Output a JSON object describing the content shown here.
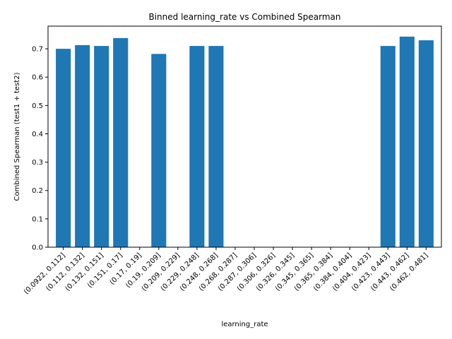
{
  "chart_data": {
    "type": "bar",
    "title": "Binned learning_rate vs Combined Spearman",
    "xlabel": "learning_rate",
    "ylabel": "Combined Spearman (test1 + test2)",
    "ylim": [
      0,
      0.78
    ],
    "yticks": [
      "0.0",
      "0.1",
      "0.2",
      "0.3",
      "0.4",
      "0.5",
      "0.6",
      "0.7"
    ],
    "yticks_values": [
      0,
      0.1,
      0.2,
      0.3,
      0.4,
      0.5,
      0.6,
      0.7
    ],
    "grid": false,
    "color": "#1f77b4",
    "categories": [
      "(0.0922, 0.112]",
      "(0.112, 0.132]",
      "(0.132, 0.151]",
      "(0.151, 0.17]",
      "(0.17, 0.19]",
      "(0.19, 0.209]",
      "(0.209, 0.229]",
      "(0.229, 0.248]",
      "(0.248, 0.268]",
      "(0.268, 0.287]",
      "(0.287, 0.306]",
      "(0.306, 0.326]",
      "(0.326, 0.345]",
      "(0.345, 0.365]",
      "(0.365, 0.384]",
      "(0.384, 0.404]",
      "(0.404, 0.423]",
      "(0.423, 0.443]",
      "(0.443, 0.462]",
      "(0.462, 0.481]"
    ],
    "values": [
      0.7,
      0.713,
      0.71,
      0.738,
      null,
      0.682,
      null,
      0.71,
      0.71,
      null,
      null,
      null,
      null,
      null,
      null,
      null,
      null,
      0.71,
      0.743,
      0.73
    ]
  }
}
